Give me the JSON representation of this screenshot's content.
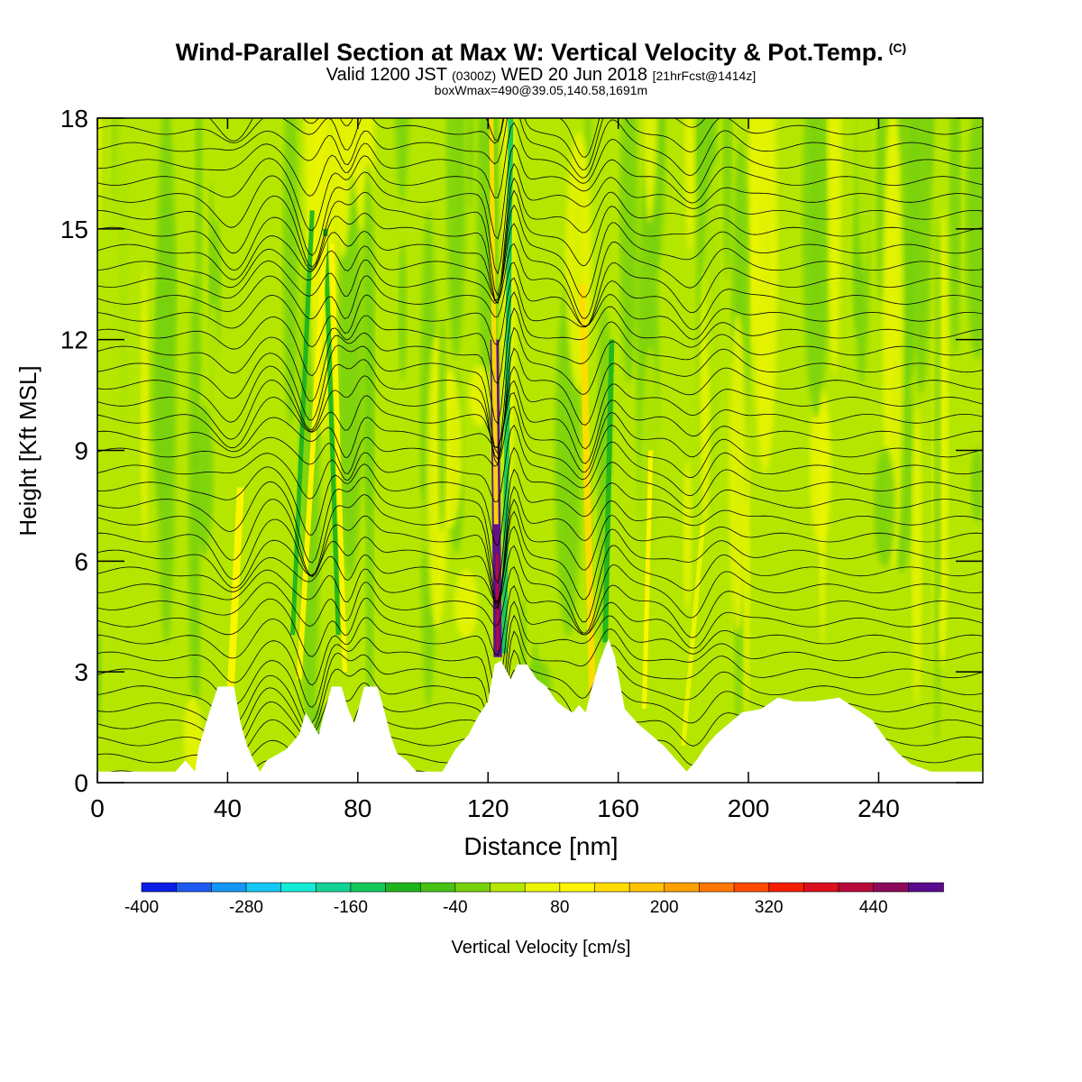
{
  "title": {
    "main": "Wind-Parallel Section at Max W: Vertical Velocity & Pot.Temp.",
    "copyright": "(C)",
    "valid_a": "Valid 1200 JST",
    "valid_b": "(0300Z)",
    "valid_c": "WED 20 Jun 2018",
    "valid_d": "[21hrFcst@1414z]",
    "box": "boxWmax=490@39.05,140.58,1691m"
  },
  "chart_data": {
    "type": "heatmap",
    "xlabel": "Distance [nm]",
    "ylabel": "Height [Kft MSL]",
    "xlim": [
      0,
      272
    ],
    "ylim": [
      0,
      18
    ],
    "x_ticks": [
      0,
      40,
      80,
      120,
      160,
      200,
      240
    ],
    "y_ticks": [
      0,
      3,
      6,
      9,
      12,
      15,
      18
    ],
    "colorbar": {
      "label": "Vertical Velocity [cm/s]",
      "levels": [
        -400,
        -360,
        -320,
        -280,
        -240,
        -200,
        -160,
        -120,
        -80,
        -40,
        0,
        40,
        80,
        120,
        160,
        200,
        240,
        280,
        320,
        360,
        400,
        440,
        480
      ],
      "tick_labels": [
        "-400",
        "-280",
        "-160",
        "-40",
        "80",
        "200",
        "320",
        "440"
      ],
      "tick_values": [
        -400,
        -280,
        -160,
        -40,
        80,
        200,
        320,
        440
      ],
      "colors": [
        "#0a1ee6",
        "#1e5af0",
        "#1496f5",
        "#14c8f5",
        "#14ebd7",
        "#14d296",
        "#14c85a",
        "#1eb41e",
        "#46c314",
        "#78d20a",
        "#b4e600",
        "#ebf500",
        "#fff500",
        "#ffdc00",
        "#ffc300",
        "#ffa000",
        "#ff7800",
        "#ff4b00",
        "#f51e00",
        "#dc0f1e",
        "#b90a3c",
        "#8c0a5a",
        "#5a0a8c"
      ]
    },
    "terrain_kft": [
      [
        0,
        0.3
      ],
      [
        24,
        0.3
      ],
      [
        27,
        0.6
      ],
      [
        30,
        0.3
      ],
      [
        31,
        0.9
      ],
      [
        34,
        1.8
      ],
      [
        37,
        2.6
      ],
      [
        42,
        2.6
      ],
      [
        44,
        1.6
      ],
      [
        46,
        1.0
      ],
      [
        48,
        0.6
      ],
      [
        50,
        0.3
      ],
      [
        52,
        0.6
      ],
      [
        58,
        0.9
      ],
      [
        62,
        1.3
      ],
      [
        64,
        1.9
      ],
      [
        66,
        1.6
      ],
      [
        68,
        1.3
      ],
      [
        70,
        2.0
      ],
      [
        72,
        2.6
      ],
      [
        75,
        2.6
      ],
      [
        77,
        2.0
      ],
      [
        79,
        1.6
      ],
      [
        82,
        2.6
      ],
      [
        86,
        2.6
      ],
      [
        88,
        2.0
      ],
      [
        90,
        1.3
      ],
      [
        92,
        0.8
      ],
      [
        95,
        0.6
      ],
      [
        98,
        0.3
      ],
      [
        106,
        0.3
      ],
      [
        110,
        0.9
      ],
      [
        114,
        1.3
      ],
      [
        117,
        1.8
      ],
      [
        120,
        2.2
      ],
      [
        122,
        3.2
      ],
      [
        124,
        3.3
      ],
      [
        127,
        2.8
      ],
      [
        129,
        3.2
      ],
      [
        132,
        3.2
      ],
      [
        135,
        2.8
      ],
      [
        138,
        2.6
      ],
      [
        141,
        2.2
      ],
      [
        144,
        2.0
      ],
      [
        146,
        1.9
      ],
      [
        148,
        2.1
      ],
      [
        150,
        1.9
      ],
      [
        152,
        2.6
      ],
      [
        154,
        3.2
      ],
      [
        157,
        3.9
      ],
      [
        159,
        3.4
      ],
      [
        162,
        2.0
      ],
      [
        166,
        1.6
      ],
      [
        170,
        1.3
      ],
      [
        174,
        1.0
      ],
      [
        178,
        0.6
      ],
      [
        181,
        0.3
      ],
      [
        184,
        0.6
      ],
      [
        187,
        1.0
      ],
      [
        190,
        1.3
      ],
      [
        194,
        1.6
      ],
      [
        198,
        1.9
      ],
      [
        204,
        2.0
      ],
      [
        209,
        2.3
      ],
      [
        214,
        2.2
      ],
      [
        220,
        2.2
      ],
      [
        228,
        2.3
      ],
      [
        233,
        2.0
      ],
      [
        238,
        1.7
      ],
      [
        242,
        1.2
      ],
      [
        246,
        0.8
      ],
      [
        250,
        0.5
      ],
      [
        256,
        0.3
      ],
      [
        272,
        0.3
      ]
    ],
    "updrafts": [
      {
        "x0": 62,
        "y0": 2.8,
        "x1": 70,
        "y1": 14.8,
        "w": 1.6,
        "level": 12
      },
      {
        "x0": 41,
        "y0": 2.6,
        "x1": 44,
        "y1": 8.0,
        "w": 2.2,
        "level": 12
      },
      {
        "x0": 76,
        "y0": 3.0,
        "x1": 72,
        "y1": 14.6,
        "w": 1.5,
        "level": 12
      },
      {
        "x0": 123,
        "y0": 3.4,
        "x1": 122,
        "y1": 12.0,
        "w": 2.6,
        "level": 22
      },
      {
        "x0": 123,
        "y0": 3.4,
        "x1": 121,
        "y1": 18.0,
        "w": 1.4,
        "level": 13
      },
      {
        "x0": 152,
        "y0": 2.4,
        "x1": 149,
        "y1": 13.5,
        "w": 2.0,
        "level": 13
      },
      {
        "x0": 168,
        "y0": 2.0,
        "x1": 170,
        "y1": 9.0,
        "w": 1.4,
        "level": 12
      },
      {
        "x0": 180,
        "y0": 1.0,
        "x1": 186,
        "y1": 7.0,
        "w": 1.4,
        "level": 11
      }
    ],
    "downdrafts": [
      {
        "x0": 60,
        "y0": 4.0,
        "x1": 66,
        "y1": 15.5,
        "w": 1.4,
        "level": 7
      },
      {
        "x0": 74,
        "y0": 4.0,
        "x1": 70,
        "y1": 15.0,
        "w": 1.4,
        "level": 7
      },
      {
        "x0": 125,
        "y0": 3.5,
        "x1": 127,
        "y1": 18.0,
        "w": 1.6,
        "level": 6
      },
      {
        "x0": 156,
        "y0": 3.8,
        "x1": 158,
        "y1": 12.0,
        "w": 1.6,
        "level": 7
      }
    ],
    "contour_waves": [
      {
        "x": 42,
        "amp": 1.1,
        "w": 7
      },
      {
        "x": 66,
        "amp": 1.6,
        "w": 5
      },
      {
        "x": 76,
        "amp": 1.2,
        "w": 4
      },
      {
        "x": 123,
        "amp": 2.4,
        "w": 3
      },
      {
        "x": 150,
        "amp": 1.4,
        "w": 5
      },
      {
        "x": 183,
        "amp": 0.8,
        "w": 6
      }
    ]
  }
}
